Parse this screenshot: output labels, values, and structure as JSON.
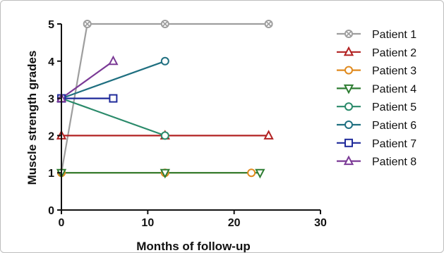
{
  "chart_data": {
    "type": "line",
    "xlabel": "Months of follow-up",
    "ylabel": "Muscle strength  grades",
    "xlim": [
      0,
      30
    ],
    "ylim": [
      0,
      5
    ],
    "xticks": [
      0,
      10,
      20,
      30
    ],
    "yticks": [
      0,
      1,
      2,
      3,
      4,
      5
    ],
    "grid": false,
    "legend_position": "right",
    "series": [
      {
        "name": "Patient 1",
        "color": "#9e9e9e",
        "marker": "circle-cross",
        "points": [
          [
            0,
            1
          ],
          [
            3,
            5
          ],
          [
            12,
            5
          ],
          [
            24,
            5
          ]
        ]
      },
      {
        "name": "Patient 2",
        "color": "#b22222",
        "marker": "triangle-up",
        "points": [
          [
            0,
            2
          ],
          [
            12,
            2
          ],
          [
            24,
            2
          ]
        ]
      },
      {
        "name": "Patient 3",
        "color": "#e08a1e",
        "marker": "circle",
        "points": [
          [
            0,
            1
          ],
          [
            12,
            1
          ],
          [
            22,
            1
          ]
        ]
      },
      {
        "name": "Patient 4",
        "color": "#2e7d32",
        "marker": "triangle-down",
        "points": [
          [
            0,
            1
          ],
          [
            12,
            1
          ],
          [
            23,
            1
          ]
        ]
      },
      {
        "name": "Patient 5",
        "color": "#2a8a6a",
        "marker": "circle",
        "points": [
          [
            0,
            3
          ],
          [
            12,
            2
          ]
        ]
      },
      {
        "name": "Patient 6",
        "color": "#1f6f80",
        "marker": "circle",
        "points": [
          [
            0,
            3
          ],
          [
            12,
            4
          ]
        ]
      },
      {
        "name": "Patient 7",
        "color": "#1f2a9a",
        "marker": "square",
        "points": [
          [
            0,
            3
          ],
          [
            6,
            3
          ]
        ]
      },
      {
        "name": "Patient 8",
        "color": "#7b3a96",
        "marker": "triangle-up",
        "points": [
          [
            0,
            3
          ],
          [
            6,
            4
          ]
        ]
      }
    ]
  }
}
